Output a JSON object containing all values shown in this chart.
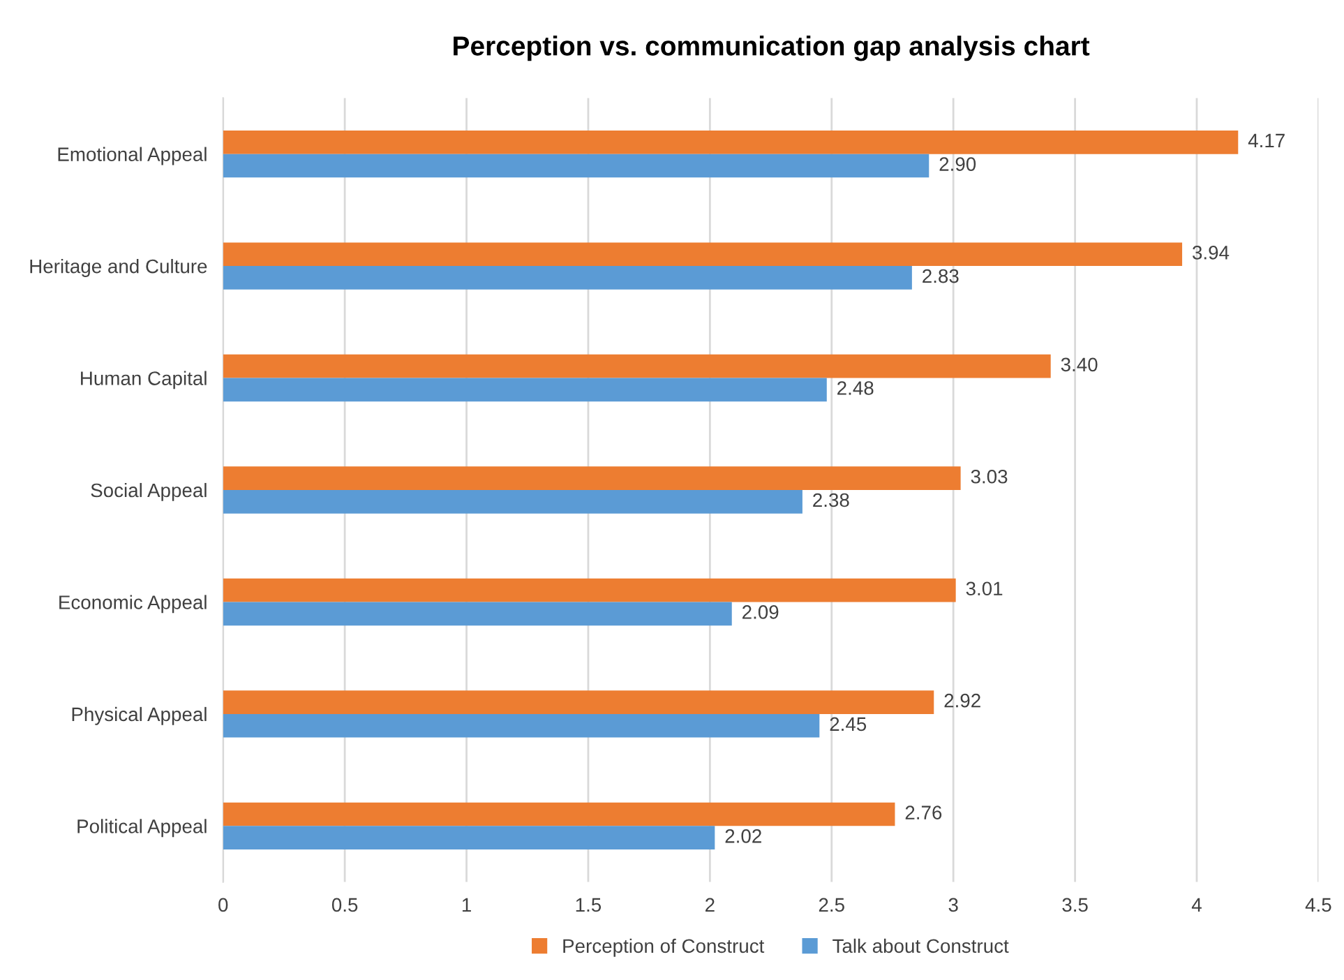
{
  "chart_data": {
    "type": "bar",
    "orientation": "horizontal",
    "title": "Perception vs. communication gap analysis chart",
    "categories": [
      "Emotional Appeal",
      "Heritage and Culture",
      "Human Capital",
      "Social Appeal",
      "Economic Appeal",
      "Physical Appeal",
      "Political Appeal"
    ],
    "series": [
      {
        "name": "Perception of Construct",
        "color": "#ed7d31",
        "values": [
          4.17,
          3.94,
          3.4,
          3.03,
          3.01,
          2.92,
          2.76
        ],
        "value_labels": [
          "4.17",
          "3.94",
          "3.40",
          "3.03",
          "3.01",
          "2.92",
          "2.76"
        ]
      },
      {
        "name": "Talk about Construct",
        "color": "#5b9bd5",
        "values": [
          2.9,
          2.83,
          2.48,
          2.38,
          2.09,
          2.45,
          2.02
        ],
        "value_labels": [
          "2.90",
          "2.83",
          "2.48",
          "2.38",
          "2.09",
          "2.45",
          "2.02"
        ]
      }
    ],
    "xlim": [
      0,
      4.5
    ],
    "xticks": [
      0,
      0.5,
      1,
      1.5,
      2,
      2.5,
      3,
      3.5,
      4,
      4.5
    ],
    "grid": "x",
    "legend": "bottom"
  }
}
